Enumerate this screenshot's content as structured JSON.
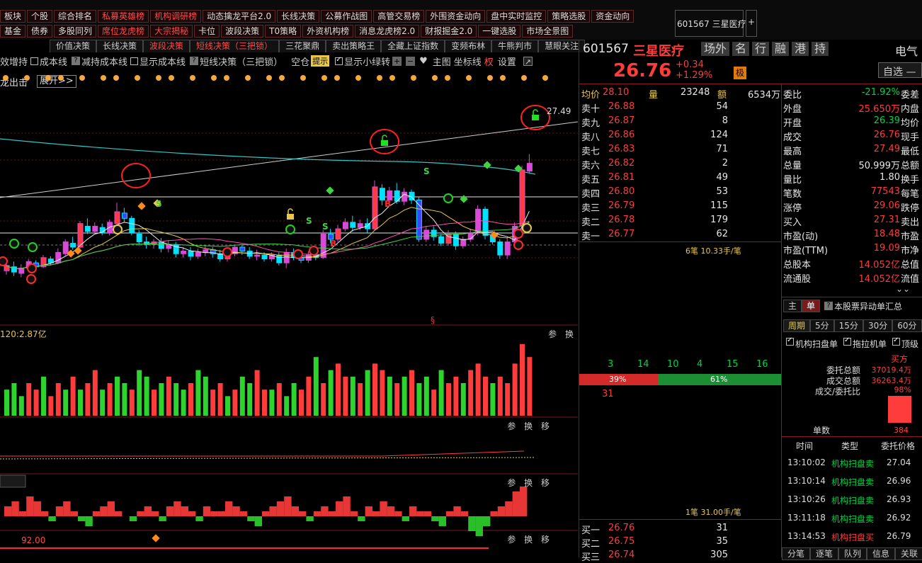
{
  "top_toolbar": {
    "row1": [
      {
        "label": "板块",
        "c": "w"
      },
      {
        "label": "个股",
        "c": "w"
      },
      {
        "label": "综合排名",
        "c": "w"
      },
      {
        "label": "私募英雄榜",
        "c": "r"
      },
      {
        "label": "机构调研榜",
        "c": "r"
      },
      {
        "label": "动态擒龙平台2.0",
        "c": "w"
      },
      {
        "label": "长线决策",
        "c": "w"
      },
      {
        "label": "公募作战图",
        "c": "w"
      },
      {
        "label": "高管交易榜",
        "c": "w"
      },
      {
        "label": "外围资金动向",
        "c": "w"
      },
      {
        "label": "盘中实时监控",
        "c": "w"
      },
      {
        "label": "策略选股",
        "c": "w"
      },
      {
        "label": "资金动向",
        "c": "w"
      }
    ],
    "row2": [
      {
        "label": "基金",
        "c": "w"
      },
      {
        "label": "债券",
        "c": "w"
      },
      {
        "label": "多股同列",
        "c": "w"
      },
      {
        "label": "席位龙虎榜",
        "c": "r"
      },
      {
        "label": "大宗揭秘",
        "c": "r"
      },
      {
        "label": "卡位",
        "c": "w"
      },
      {
        "label": "波段决策",
        "c": "w"
      },
      {
        "label": "T0策略",
        "c": "w"
      },
      {
        "label": "外资机构榜",
        "c": "w"
      },
      {
        "label": "消息龙虎榜2.0",
        "c": "w"
      },
      {
        "label": "财报掘金2.0",
        "c": "w"
      },
      {
        "label": "一键选股",
        "c": "w"
      },
      {
        "label": "市场全景图",
        "c": "w"
      }
    ],
    "stock_tab": "601567 三星医疗",
    "plus": "+"
  },
  "strategy_tabs": [
    "价值决策",
    "长线决策",
    "波段决策",
    "短线决策（三把锁）",
    "三花聚鼎",
    "卖出策略王",
    "全藏上证指数",
    "变频布林",
    "牛熊判市",
    "慧眼关注"
  ],
  "options": {
    "items": [
      "效增持",
      "成本线",
      "减持成本线",
      "显示成本线",
      "短线决策（三把锁）",
      "空仓",
      "显示小绿转"
    ],
    "tip": "提示",
    "main_label": "主图",
    "coord_label": "坐标线",
    "quan": "权",
    "settings": "设置",
    "dragon_label": "龙出击",
    "expand": "展开>>"
  },
  "chart": {
    "price_label_high": "27.49",
    "vol_label": "120:2.87亿",
    "marker_low_value": "92.00",
    "panel_tools_a": "参 换",
    "panel_tools_b": "参 换 移"
  },
  "stock": {
    "code": "601567",
    "name": "三星医疗",
    "tags": [
      "场外",
      "名",
      "行",
      "融",
      "港",
      "持"
    ],
    "price": "26.76",
    "change": "+0.34",
    "change_pct": "+1.29%",
    "badge": "极",
    "sector_short": "电气",
    "watch_btn": "自选 —"
  },
  "summary": {
    "avg_label": "均价",
    "avg": "28.10",
    "vol_label": "量",
    "vol": "23248",
    "amt_label": "额",
    "amt": "6534万"
  },
  "asks": [
    {
      "label": "卖十",
      "price": "26.88",
      "vol": "54"
    },
    {
      "label": "卖九",
      "price": "26.87",
      "vol": "8"
    },
    {
      "label": "卖八",
      "price": "26.86",
      "vol": "124"
    },
    {
      "label": "卖七",
      "price": "26.83",
      "vol": "71"
    },
    {
      "label": "卖六",
      "price": "26.82",
      "vol": "2"
    },
    {
      "label": "卖五",
      "price": "26.81",
      "vol": "49"
    },
    {
      "label": "卖四",
      "price": "26.80",
      "vol": "53"
    },
    {
      "label": "卖三",
      "price": "26.79",
      "vol": "115"
    },
    {
      "label": "卖二",
      "price": "26.78",
      "vol": "179"
    },
    {
      "label": "卖一",
      "price": "26.77",
      "vol": "62"
    }
  ],
  "ask_note": "6笔 10.33手/笔",
  "bids": [
    {
      "label": "买一",
      "price": "26.76",
      "vol": "31"
    },
    {
      "label": "买二",
      "price": "26.75",
      "vol": "35"
    },
    {
      "label": "买三",
      "price": "26.74",
      "vol": "305"
    }
  ],
  "bid_note": "1笔 31.00手/笔",
  "quote": [
    {
      "k": "委比",
      "v": "-21.92%",
      "c": "green",
      "k2": "委差"
    },
    {
      "k": "外盘",
      "v": "25.650万",
      "c": "red",
      "k2": "内盘"
    },
    {
      "k": "开盘",
      "v": "26.39",
      "c": "green",
      "k2": "均价"
    },
    {
      "k": "成交",
      "v": "26.76",
      "c": "red",
      "k2": "现手"
    },
    {
      "k": "最高",
      "v": "27.49",
      "c": "red",
      "k2": "最低"
    },
    {
      "k": "总量",
      "v": "50.999万",
      "c": "wht",
      "k2": "总额"
    },
    {
      "k": "量比",
      "v": "1.80",
      "c": "wht",
      "k2": "换手"
    },
    {
      "k": "笔数",
      "v": "77543",
      "c": "red",
      "k2": "每笔"
    },
    {
      "k": "涨停",
      "v": "29.06",
      "c": "red",
      "k2": "跌停"
    },
    {
      "k": "买入",
      "v": "27.31",
      "c": "red",
      "k2": "卖出"
    },
    {
      "k": "市盈(动)",
      "v": "18.48",
      "c": "red",
      "k2": "市盈"
    },
    {
      "k": "市盈(TTM)",
      "v": "19.09",
      "c": "red",
      "k2": "市净"
    },
    {
      "k": "总股本",
      "v": "14.052亿",
      "c": "red",
      "k2": "总值"
    },
    {
      "k": "流通股",
      "v": "14.052亿",
      "c": "red",
      "k2": "流值"
    }
  ],
  "flow": {
    "counts": [
      "3",
      "14",
      "10",
      "4",
      "15",
      "16"
    ],
    "left_pct": "39%",
    "right_pct": "61%",
    "left_ratio": 0.39,
    "under": "31"
  },
  "order_panel": {
    "tabs": [
      "主",
      "单"
    ],
    "title": "本股票异动单汇总",
    "periods": [
      "周期",
      "5分",
      "15分",
      "30分",
      "60分"
    ],
    "checks": [
      "机构扫盘单",
      "拖拉机单",
      "顶级"
    ],
    "buy_label": "买方",
    "rows": [
      {
        "k": "委托总额",
        "v": "37019.4万"
      },
      {
        "k": "成交总额",
        "v": "36263.4万"
      },
      {
        "k": "成交/委托比",
        "v": "98%"
      }
    ],
    "bar_ratio": 0.98,
    "single_label": "单数",
    "single_value": "384",
    "headers": [
      "时间",
      "类型",
      "委托价格"
    ],
    "trades": [
      {
        "t": "13:10:02",
        "type": "机构扫盘卖",
        "p": "27.04",
        "c": "green"
      },
      {
        "t": "13:10:14",
        "type": "机构扫盘卖",
        "p": "26.96",
        "c": "green"
      },
      {
        "t": "13:10:26",
        "type": "机构扫盘卖",
        "p": "26.93",
        "c": "green"
      },
      {
        "t": "13:11:18",
        "type": "机构扫盘卖",
        "p": "26.92",
        "c": "green"
      },
      {
        "t": "13:14:53",
        "type": "机构扫盘买",
        "p": "26.79",
        "c": "red"
      }
    ],
    "bottom_tabs": [
      "分笔",
      "逐笔",
      "队列",
      "信息",
      "关联"
    ]
  },
  "candles": [
    [
      4.2,
      4.6,
      3.9,
      4.8
    ],
    [
      4.5,
      4.1,
      3.8,
      4.9
    ],
    [
      4.0,
      4.4,
      3.7,
      4.7
    ],
    [
      4.4,
      4.9,
      4.2,
      5.1
    ],
    [
      4.8,
      4.5,
      4.3,
      5.0
    ],
    [
      4.5,
      5.2,
      4.4,
      5.4
    ],
    [
      5.1,
      4.8,
      4.6,
      5.3
    ],
    [
      4.8,
      5.6,
      4.7,
      5.9
    ],
    [
      5.5,
      6.4,
      5.3,
      6.6
    ],
    [
      6.3,
      6.0,
      5.8,
      6.8
    ],
    [
      6.0,
      7.8,
      5.9,
      8.0
    ],
    [
      7.6,
      7.2,
      7.0,
      8.2
    ],
    [
      7.2,
      7.6,
      7.0,
      7.9
    ],
    [
      7.5,
      7.1,
      6.9,
      7.8
    ],
    [
      7.1,
      7.9,
      6.9,
      8.1
    ],
    [
      7.8,
      8.7,
      7.6,
      9.4
    ],
    [
      8.6,
      8.2,
      7.9,
      9.0
    ],
    [
      8.2,
      7.1,
      6.9,
      8.4
    ],
    [
      7.0,
      6.4,
      6.1,
      7.3
    ],
    [
      6.4,
      6.2,
      5.9,
      6.8
    ],
    [
      6.2,
      6.4,
      5.9,
      6.6
    ],
    [
      6.4,
      5.9,
      5.6,
      6.7
    ],
    [
      5.9,
      6.2,
      5.6,
      6.5
    ],
    [
      6.2,
      5.5,
      5.2,
      6.4
    ],
    [
      5.5,
      5.7,
      5.2,
      6.0
    ],
    [
      5.7,
      5.3,
      5.0,
      6.0
    ],
    [
      5.3,
      5.6,
      5.1,
      5.9
    ],
    [
      5.6,
      5.8,
      5.3,
      6.1
    ],
    [
      5.8,
      5.5,
      5.2,
      6.0
    ],
    [
      5.5,
      5.1,
      4.9,
      5.8
    ],
    [
      5.1,
      5.5,
      4.9,
      5.7
    ],
    [
      5.5,
      6.0,
      5.3,
      6.2
    ],
    [
      6.0,
      5.7,
      5.4,
      6.2
    ],
    [
      5.7,
      5.3,
      5.1,
      6.0
    ],
    [
      5.3,
      5.4,
      5.0,
      5.8
    ],
    [
      5.4,
      5.1,
      4.9,
      5.6
    ],
    [
      5.1,
      5.4,
      4.9,
      5.6
    ],
    [
      5.4,
      4.8,
      4.6,
      5.6
    ],
    [
      4.8,
      5.6,
      4.4,
      5.9
    ],
    [
      5.6,
      5.2,
      5.0,
      5.9
    ],
    [
      5.2,
      5.0,
      4.8,
      5.5
    ],
    [
      5.0,
      5.4,
      4.8,
      5.7
    ],
    [
      5.4,
      5.2,
      5.0,
      5.6
    ],
    [
      5.2,
      7.0,
      5.1,
      7.3
    ],
    [
      7.0,
      6.6,
      6.3,
      7.4
    ],
    [
      6.6,
      7.4,
      6.4,
      7.7
    ],
    [
      7.4,
      7.9,
      7.2,
      8.2
    ],
    [
      7.9,
      7.5,
      7.2,
      8.4
    ],
    [
      7.5,
      7.8,
      7.3,
      8.1
    ],
    [
      7.8,
      7.4,
      7.1,
      8.2
    ],
    [
      7.4,
      10.6,
      7.3,
      11.1
    ],
    [
      10.5,
      9.6,
      9.2,
      10.8
    ],
    [
      9.6,
      10.3,
      9.4,
      10.6
    ],
    [
      10.3,
      9.5,
      9.3,
      10.9
    ],
    [
      9.5,
      10.2,
      9.2,
      10.5
    ],
    [
      10.2,
      9.6,
      9.3,
      10.4
    ],
    [
      9.6,
      6.6,
      6.4,
      9.8
    ],
    [
      6.6,
      7.3,
      6.4,
      7.6
    ],
    [
      7.3,
      6.8,
      6.5,
      7.6
    ],
    [
      6.8,
      6.3,
      6.1,
      7.0
    ],
    [
      6.3,
      7.0,
      6.1,
      7.3
    ],
    [
      7.0,
      6.1,
      5.8,
      7.2
    ],
    [
      6.1,
      6.6,
      5.9,
      6.8
    ],
    [
      6.6,
      7.1,
      6.4,
      7.4
    ],
    [
      7.1,
      8.9,
      6.9,
      9.2
    ],
    [
      8.9,
      6.9,
      6.6,
      9.1
    ],
    [
      6.9,
      6.4,
      6.2,
      7.1
    ],
    [
      6.4,
      5.4,
      5.1,
      6.6
    ],
    [
      5.4,
      6.4,
      5.1,
      6.7
    ],
    [
      6.4,
      7.6,
      6.2,
      7.9
    ],
    [
      7.6,
      11.9,
      7.4,
      12.2
    ],
    [
      11.8,
      12.4,
      11.6,
      13.1
    ]
  ],
  "volumes": [
    4,
    5,
    3,
    5,
    4,
    6,
    3,
    5,
    4,
    6,
    4,
    5,
    7,
    4,
    5,
    6,
    5,
    4,
    7,
    6,
    4,
    5,
    6,
    5,
    4,
    5,
    7,
    6,
    4,
    5,
    3,
    4,
    6,
    5,
    7,
    4,
    4,
    5,
    3,
    5,
    4,
    6,
    9,
    5,
    7,
    8,
    6,
    6,
    5,
    7,
    8,
    7,
    6,
    5,
    6,
    7,
    5,
    6,
    4,
    7,
    5,
    6,
    5,
    7,
    8,
    6,
    5,
    6,
    5,
    8,
    11,
    9
  ],
  "volume_colors": [
    0,
    0,
    0,
    1,
    1,
    0,
    1,
    1,
    0,
    1,
    0,
    1,
    1,
    0,
    1,
    0,
    0,
    1,
    0,
    0,
    1,
    0,
    1,
    0,
    0,
    1,
    0,
    0,
    1,
    1,
    0,
    1,
    0,
    0,
    1,
    1,
    0,
    1,
    0,
    0,
    1,
    1,
    0,
    1,
    0,
    1,
    1,
    0,
    1,
    0,
    1,
    1,
    0,
    1,
    0,
    1,
    0,
    0,
    1,
    0,
    1,
    1,
    0,
    1,
    1,
    1,
    0,
    1,
    1,
    1,
    1,
    1
  ],
  "osc": [
    2,
    3,
    1,
    4,
    3,
    1,
    -1,
    2,
    3,
    1,
    -1,
    -2,
    1,
    2,
    3,
    1,
    0,
    -1,
    1,
    2,
    1,
    -1,
    2,
    3,
    2,
    1,
    -1,
    2,
    1,
    1,
    3,
    2,
    1,
    -1,
    -2,
    1,
    2,
    3,
    4,
    2,
    1,
    -1,
    1,
    2,
    1,
    3,
    4,
    1,
    -1,
    2,
    1,
    3,
    2,
    1,
    -1,
    2,
    1,
    1,
    -1,
    -2,
    1,
    2,
    1,
    -3,
    -4,
    -2,
    1,
    2,
    3,
    5,
    6
  ]
}
